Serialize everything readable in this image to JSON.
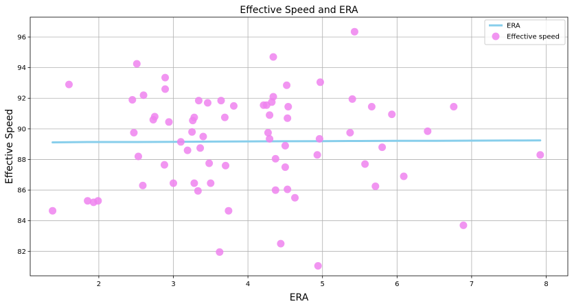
{
  "chart_data": {
    "type": "scatter",
    "title": "Effective Speed and ERA",
    "xlabel": "ERA",
    "ylabel": "Effective Speed",
    "xlim": [
      1.08,
      8.29
    ],
    "ylim": [
      80.4,
      97.3
    ],
    "xticks": [
      2,
      3,
      4,
      5,
      6,
      7,
      8
    ],
    "yticks": [
      82,
      84,
      86,
      88,
      90,
      92,
      94,
      96
    ],
    "grid": true,
    "legend_position": "top-right",
    "colors": {
      "line": "#87ceeb",
      "points": "#ee82ee"
    },
    "series": [
      {
        "name": "ERA",
        "kind": "line",
        "x": [
          1.38,
          1.85,
          2.5,
          3.0,
          3.5,
          4.0,
          4.5,
          5.0,
          5.5,
          6.0,
          6.5,
          7.0,
          7.5,
          7.92
        ],
        "y": [
          89.12,
          89.14,
          89.14,
          89.15,
          89.17,
          89.18,
          89.19,
          89.2,
          89.21,
          89.22,
          89.22,
          89.23,
          89.24,
          89.25
        ]
      },
      {
        "name": "Effective speed",
        "kind": "scatter",
        "x": [
          1.38,
          1.6,
          1.85,
          1.93,
          1.99,
          2.45,
          2.47,
          2.51,
          2.53,
          2.59,
          2.6,
          2.73,
          2.75,
          2.88,
          2.89,
          2.89,
          2.94,
          3.0,
          3.1,
          3.19,
          3.25,
          3.26,
          3.28,
          3.28,
          3.33,
          3.34,
          3.36,
          3.4,
          3.46,
          3.48,
          3.5,
          3.62,
          3.64,
          3.69,
          3.7,
          3.74,
          3.81,
          4.21,
          4.25,
          4.27,
          4.29,
          4.29,
          4.32,
          4.34,
          4.34,
          4.37,
          4.37,
          4.44,
          4.5,
          4.5,
          4.52,
          4.53,
          4.53,
          4.54,
          4.63,
          4.93,
          4.94,
          4.96,
          4.97,
          5.37,
          5.4,
          5.43,
          5.57,
          5.66,
          5.71,
          5.8,
          5.93,
          6.09,
          6.41,
          6.76,
          6.89,
          7.92
        ],
        "y": [
          84.65,
          92.9,
          85.3,
          85.2,
          85.3,
          91.9,
          89.75,
          94.25,
          88.2,
          86.3,
          92.2,
          90.6,
          90.8,
          87.65,
          93.35,
          92.6,
          90.45,
          86.45,
          89.15,
          88.6,
          89.8,
          90.55,
          90.75,
          86.45,
          85.95,
          91.85,
          88.75,
          89.5,
          91.7,
          87.75,
          86.45,
          81.95,
          91.85,
          90.75,
          87.6,
          84.65,
          91.5,
          91.55,
          91.55,
          89.75,
          90.9,
          89.35,
          91.75,
          92.1,
          94.7,
          88.05,
          86.0,
          82.5,
          88.9,
          87.5,
          92.85,
          86.05,
          90.7,
          91.45,
          85.5,
          88.3,
          81.05,
          89.35,
          93.05,
          89.75,
          91.95,
          96.35,
          87.7,
          91.45,
          86.25,
          88.8,
          90.95,
          86.9,
          89.85,
          91.45,
          83.7,
          88.3
        ]
      }
    ]
  }
}
